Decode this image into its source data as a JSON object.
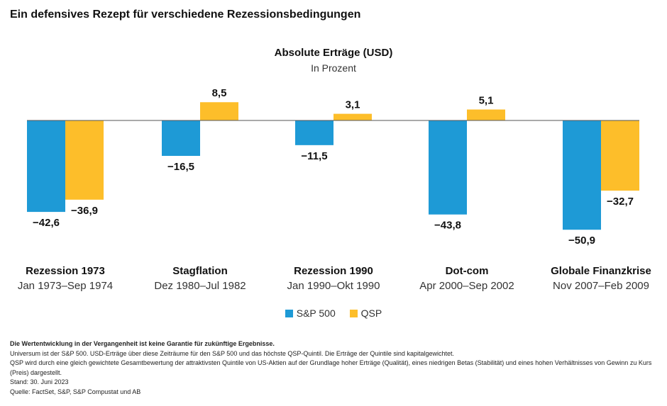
{
  "title": "Ein defensives Rezept für verschiedene Rezessionsbedingungen",
  "chart_data": {
    "type": "bar",
    "title": "Absolute Erträge (USD)",
    "subtitle": "In Prozent",
    "categories": [
      {
        "name": "Rezession 1973",
        "period": "Jan 1973–Sep 1974"
      },
      {
        "name": "Stagflation",
        "period": "Dez 1980–Jul 1982"
      },
      {
        "name": "Rezession 1990",
        "period": "Jan 1990–Okt 1990"
      },
      {
        "name": "Dot-com",
        "period": "Apr 2000–Sep 2002"
      },
      {
        "name": "Globale Finanzkrise",
        "period": "Nov 2007–Feb 2009"
      }
    ],
    "series": [
      {
        "name": "S&P 500",
        "color": "#1E9AD6",
        "values": [
          -42.6,
          -16.5,
          -11.5,
          -43.8,
          -50.9
        ],
        "labels": [
          "−42,6",
          "−16,5",
          "−11,5",
          "−43,8",
          "−50,9"
        ]
      },
      {
        "name": "QSP",
        "color": "#FDBE2A",
        "values": [
          -36.9,
          8.5,
          3.1,
          5.1,
          -32.7
        ],
        "labels": [
          "−36,9",
          "8,5",
          "3,1",
          "5,1",
          "−32,7"
        ]
      }
    ],
    "legend": "bottom-center",
    "grid": false
  },
  "notes": {
    "disclaimer": "Die Wertentwicklung in der Vergangenheit ist keine Garantie für zukünftige Ergebnisse.",
    "lines": [
      "Universum ist der S&P 500. USD-Erträge über diese Zeiträume für den S&P 500 und das höchste QSP-Quintil. Die Erträge der Quintile sind kapitalgewichtet.",
      "QSP wird durch eine gleich gewichtete Gesamtbewertung der attraktivsten Quintile von US-Aktien auf der Grundlage hoher Erträge (Qualität), eines niedrigen Betas (Stabilität) und eines hohen Verhältnisses von Gewinn zu Kurs (Preis) dargestellt.",
      "Stand: 30. Juni 2023",
      "Quelle: FactSet, S&P, S&P Compustat und AB"
    ]
  }
}
